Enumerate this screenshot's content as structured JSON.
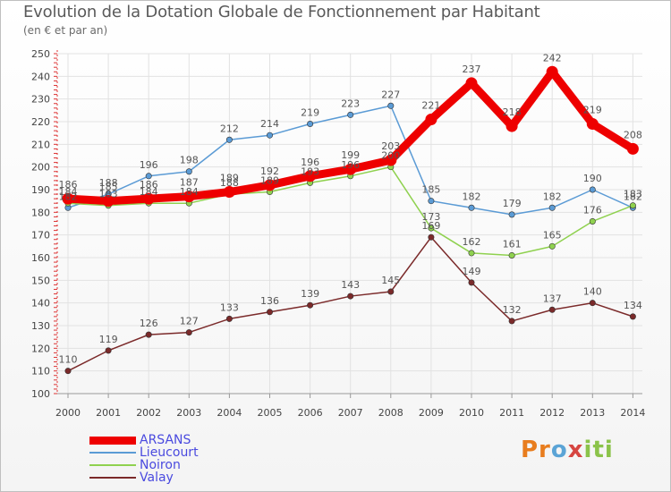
{
  "title": "Evolution de la Dotation Globale de Fonctionnement par Habitant",
  "subtitle": "(en € et par an)",
  "logo": {
    "parts": [
      "Pr",
      "o",
      "x",
      "iti"
    ]
  },
  "chart_data": {
    "type": "line",
    "title": "Evolution de la Dotation Globale de Fonctionnement par Habitant",
    "subtitle": "(en € et par an)",
    "x": [
      "2000",
      "2001",
      "2002",
      "2003",
      "2004",
      "2005",
      "2006",
      "2007",
      "2008",
      "2009",
      "2010",
      "2011",
      "2012",
      "2013",
      "2014"
    ],
    "ylim": [
      100,
      250
    ],
    "yticks": [
      100,
      110,
      120,
      130,
      140,
      150,
      160,
      170,
      180,
      190,
      200,
      210,
      220,
      230,
      240,
      250
    ],
    "grid": true,
    "legend_position": "bottom-left",
    "series": [
      {
        "name": "Lieucourt",
        "color": "#5b9bd5",
        "values": [
          182,
          188,
          196,
          198,
          212,
          214,
          219,
          223,
          227,
          185,
          182,
          179,
          182,
          190,
          182
        ]
      },
      {
        "name": "Noiron",
        "color": "#8fd14f",
        "values": [
          184,
          183,
          184,
          184,
          188,
          189,
          193,
          196,
          200,
          173,
          162,
          161,
          165,
          176,
          183
        ]
      },
      {
        "name": "Valay",
        "color": "#7b2a2a",
        "values": [
          110,
          119,
          126,
          127,
          133,
          136,
          139,
          143,
          145,
          169,
          149,
          132,
          137,
          140,
          134
        ]
      },
      {
        "name": "ARSANS",
        "color": "#ee0000",
        "values": [
          186,
          185,
          186,
          187,
          189,
          192,
          196,
          199,
          203,
          221,
          237,
          218,
          242,
          219,
          208
        ]
      }
    ]
  }
}
